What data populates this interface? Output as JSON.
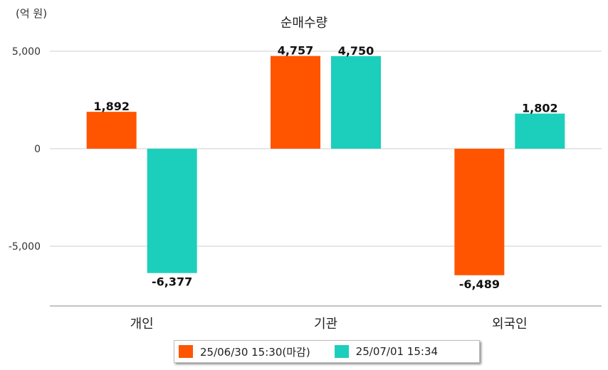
{
  "chart_data": {
    "type": "bar",
    "title": "순매수량",
    "unit_label": "(억 원)",
    "categories": [
      "개인",
      "기관",
      "외국인"
    ],
    "series": [
      {
        "name": "25/06/30 15:30(마감)",
        "color": "#ff5500",
        "values": [
          1892,
          4757,
          -6489
        ],
        "labels": [
          "1,892",
          "4,757",
          "-6,489"
        ]
      },
      {
        "name": "25/07/01 15:34",
        "color": "#1ccfbc",
        "values": [
          -6377,
          4750,
          1802
        ],
        "labels": [
          "-6,377",
          "4,750",
          "1,802"
        ]
      }
    ],
    "yticks": [
      5000,
      0,
      -5000
    ],
    "ytick_labels": [
      "5,000",
      "0",
      "-5,000"
    ],
    "ylim": [
      -8000,
      5000
    ],
    "grid": true,
    "legend_position": "bottom"
  }
}
